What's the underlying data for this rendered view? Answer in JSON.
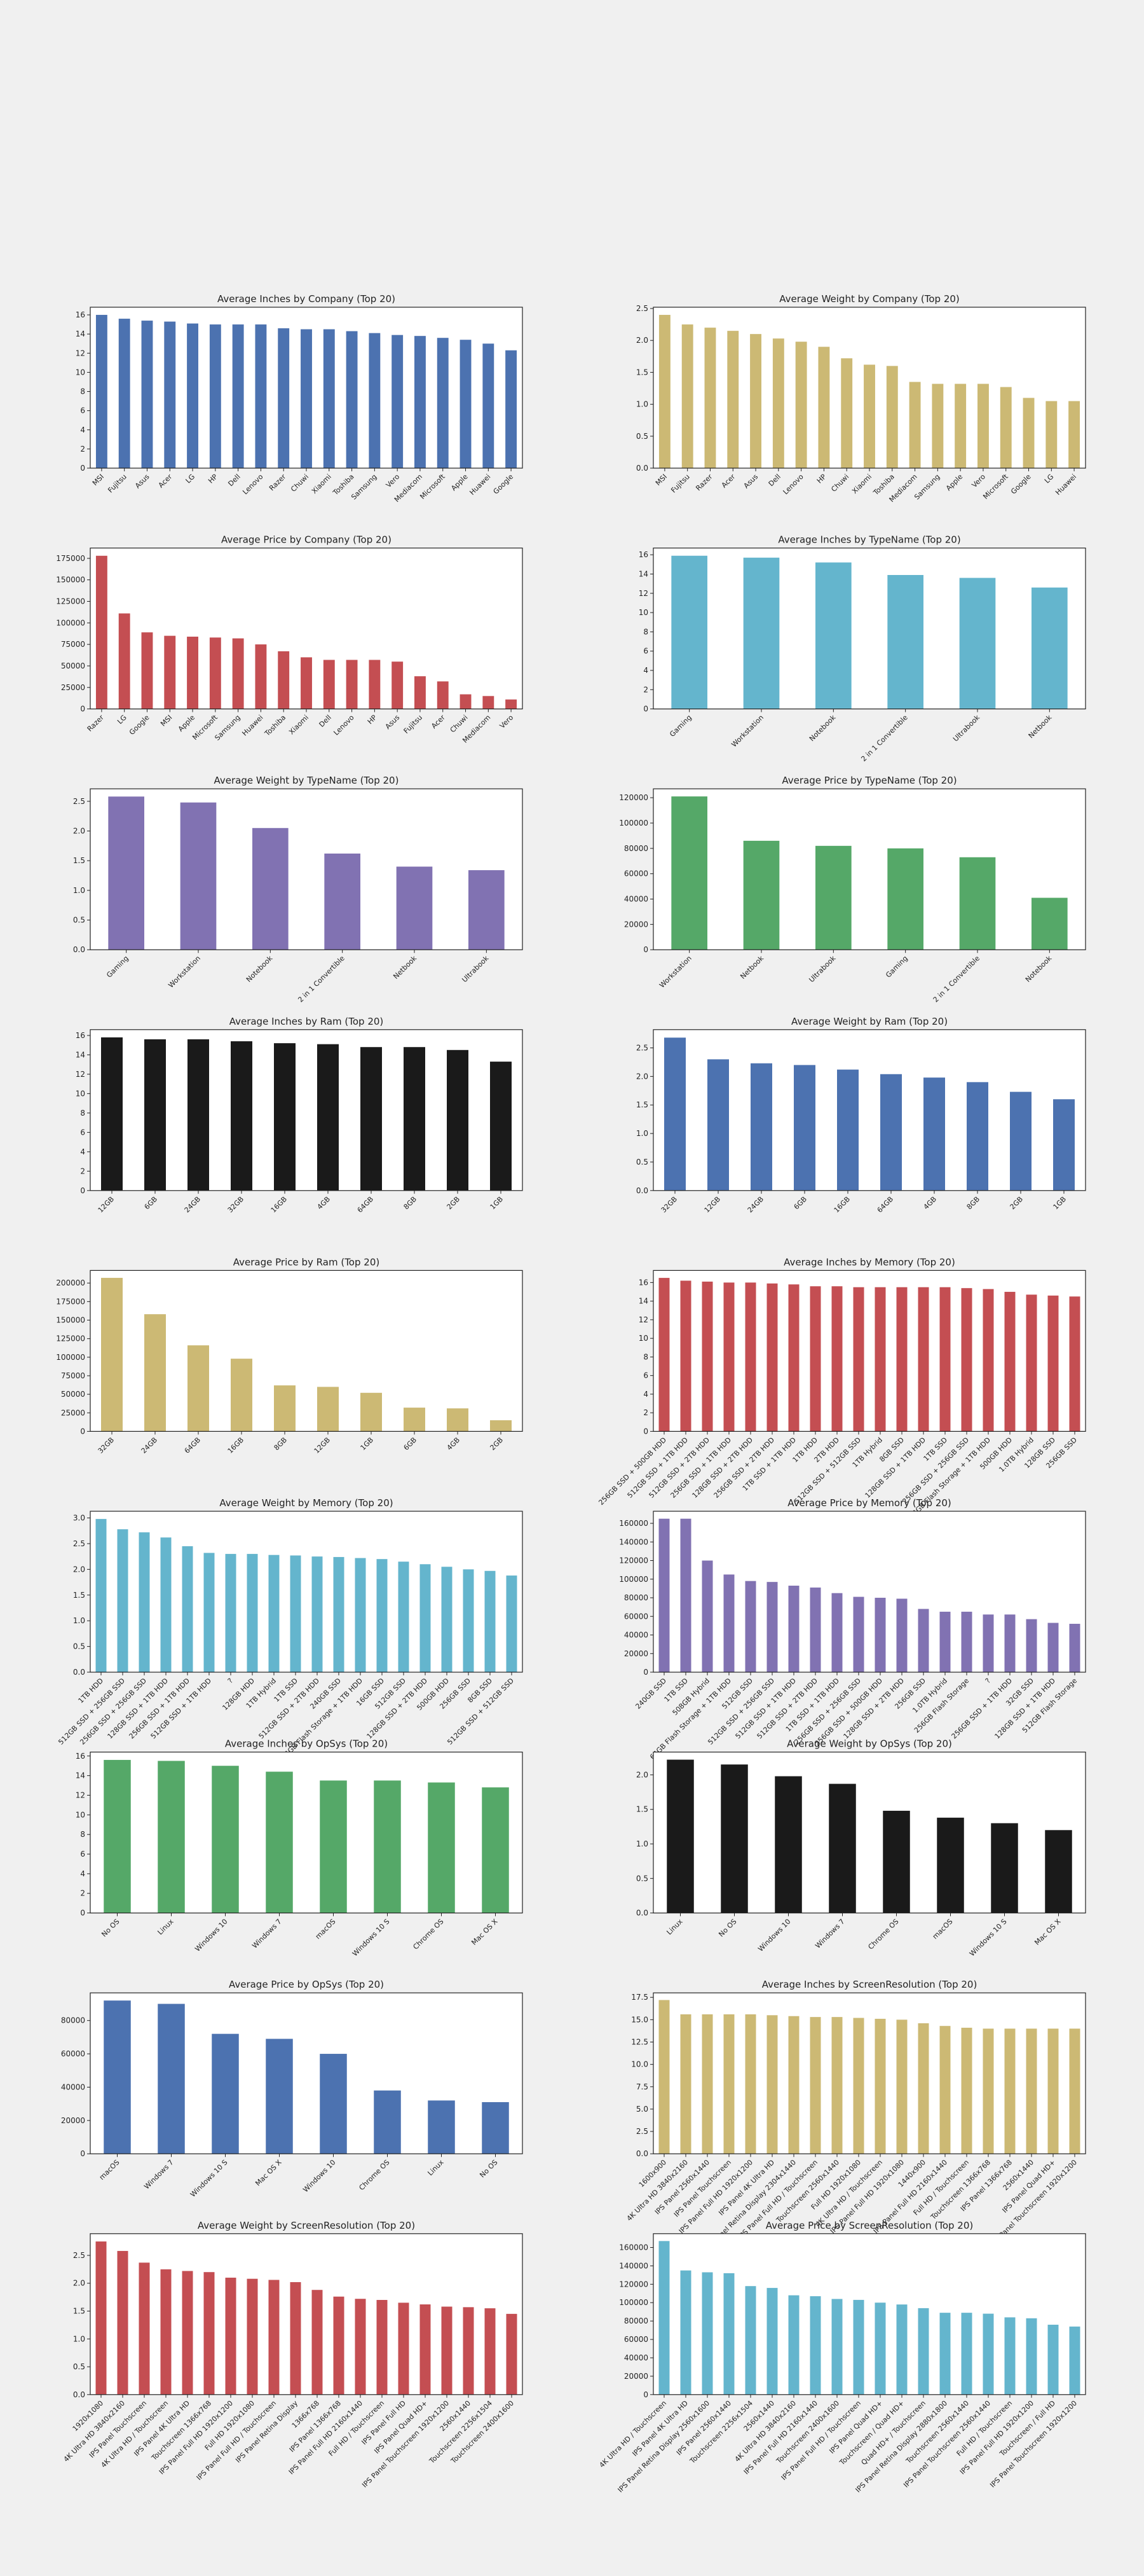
{
  "chart_data": [
    {
      "type": "bar",
      "title": "Average Inches by Company (Top 20)",
      "color": "#4c72b0",
      "categories": [
        "MSI",
        "Fujitsu",
        "Asus",
        "Acer",
        "LG",
        "HP",
        "Dell",
        "Lenovo",
        "Razer",
        "Chuwi",
        "Xiaomi",
        "Toshiba",
        "Samsung",
        "Vero",
        "Mediacom",
        "Microsoft",
        "Apple",
        "Huawei",
        "Google"
      ],
      "values": [
        16.0,
        15.6,
        15.4,
        15.3,
        15.1,
        15.0,
        15.0,
        15.0,
        14.6,
        14.5,
        14.5,
        14.3,
        14.1,
        13.9,
        13.8,
        13.6,
        13.4,
        13.0,
        12.3
      ],
      "ylim": [
        0,
        16.8
      ],
      "yticks": [
        0,
        2,
        4,
        6,
        8,
        10,
        12,
        14,
        16
      ]
    },
    {
      "type": "bar",
      "title": "Average Weight by Company (Top 20)",
      "color": "#ccb974",
      "categories": [
        "MSI",
        "Fujitsu",
        "Razer",
        "Acer",
        "Asus",
        "Dell",
        "Lenovo",
        "HP",
        "Chuwi",
        "Xiaomi",
        "Toshiba",
        "Mediacom",
        "Samsung",
        "Apple",
        "Vero",
        "Microsoft",
        "Google",
        "LG",
        "Huawei"
      ],
      "values": [
        2.4,
        2.25,
        2.2,
        2.15,
        2.1,
        2.03,
        1.98,
        1.9,
        1.72,
        1.62,
        1.6,
        1.35,
        1.32,
        1.32,
        1.32,
        1.27,
        1.1,
        1.05,
        1.05
      ],
      "ylim": [
        0,
        2.52
      ],
      "yticks": [
        {
          "value": 0,
          "label": "0.0"
        },
        0.5,
        {
          "value": 1,
          "label": "1.0"
        },
        1.5,
        {
          "value": 2,
          "label": "2.0"
        },
        2.5
      ]
    },
    {
      "type": "bar",
      "title": "Average Price by Company (Top 20)",
      "color": "#c44e52",
      "categories": [
        "Razer",
        "LG",
        "Google",
        "MSI",
        "Apple",
        "Microsoft",
        "Samsung",
        "Huawei",
        "Toshiba",
        "Xiaomi",
        "Dell",
        "Lenovo",
        "HP",
        "Asus",
        "Fujitsu",
        "Acer",
        "Chuwi",
        "Mediacom",
        "Vero"
      ],
      "values": [
        178000,
        111000,
        89000,
        85000,
        84000,
        83000,
        82000,
        75000,
        67000,
        60000,
        57000,
        57000,
        57000,
        55000,
        38000,
        32000,
        17000,
        15000,
        11000
      ],
      "ylim": [
        0,
        187000
      ],
      "yticks": [
        0,
        25000,
        50000,
        75000,
        100000,
        125000,
        150000,
        175000
      ]
    },
    {
      "type": "bar",
      "title": "Average Inches by TypeName (Top 20)",
      "color": "#64b5cd",
      "categories": [
        "Gaming",
        "Workstation",
        "Notebook",
        "2 in 1 Convertible",
        "Ultrabook",
        "Netbook"
      ],
      "values": [
        15.9,
        15.7,
        15.2,
        13.9,
        13.6,
        12.6
      ],
      "ylim": [
        0,
        16.7
      ],
      "yticks": [
        0,
        2,
        4,
        6,
        8,
        10,
        12,
        14,
        16
      ]
    },
    {
      "type": "bar",
      "title": "Average Weight by TypeName (Top 20)",
      "color": "#8172b2",
      "categories": [
        "Gaming",
        "Workstation",
        "Notebook",
        "2 in 1 Convertible",
        "Netbook",
        "Ultrabook"
      ],
      "values": [
        2.58,
        2.48,
        2.05,
        1.62,
        1.4,
        1.34
      ],
      "ylim": [
        0,
        2.71
      ],
      "yticks": [
        {
          "value": 0,
          "label": "0.0"
        },
        0.5,
        {
          "value": 1,
          "label": "1.0"
        },
        1.5,
        {
          "value": 2,
          "label": "2.0"
        },
        2.5
      ]
    },
    {
      "type": "bar",
      "title": "Average Price by TypeName (Top 20)",
      "color": "#55a868",
      "categories": [
        "Workstation",
        "Netbook",
        "Ultrabook",
        "Gaming",
        "2 in 1 Convertible",
        "Notebook"
      ],
      "values": [
        121000,
        86000,
        82000,
        80000,
        73000,
        41000
      ],
      "ylim": [
        0,
        127000
      ],
      "yticks": [
        0,
        20000,
        40000,
        60000,
        80000,
        100000,
        120000
      ]
    },
    {
      "type": "bar",
      "title": "Average Inches by Ram (Top 20)",
      "color": "#1a1a1a",
      "categories": [
        "12GB",
        "6GB",
        "24GB",
        "32GB",
        "16GB",
        "4GB",
        "64GB",
        "8GB",
        "2GB",
        "1GB"
      ],
      "values": [
        15.8,
        15.6,
        15.6,
        15.4,
        15.2,
        15.1,
        14.8,
        14.8,
        14.5,
        13.3
      ],
      "ylim": [
        0,
        16.6
      ],
      "yticks": [
        0,
        2,
        4,
        6,
        8,
        10,
        12,
        14,
        16
      ]
    },
    {
      "type": "bar",
      "title": "Average Weight by Ram (Top 20)",
      "color": "#4c72b0",
      "categories": [
        "32GB",
        "12GB",
        "24GB",
        "6GB",
        "16GB",
        "64GB",
        "4GB",
        "8GB",
        "2GB",
        "1GB"
      ],
      "values": [
        2.68,
        2.3,
        2.23,
        2.2,
        2.12,
        2.04,
        1.98,
        1.9,
        1.73,
        1.6
      ],
      "ylim": [
        0,
        2.82
      ],
      "yticks": [
        {
          "value": 0,
          "label": "0.0"
        },
        0.5,
        {
          "value": 1,
          "label": "1.0"
        },
        1.5,
        {
          "value": 2,
          "label": "2.0"
        },
        2.5
      ]
    },
    {
      "type": "bar",
      "title": "Average Price by Ram (Top 20)",
      "color": "#ccb974",
      "categories": [
        "32GB",
        "24GB",
        "64GB",
        "16GB",
        "8GB",
        "12GB",
        "1GB",
        "6GB",
        "4GB",
        "2GB"
      ],
      "values": [
        207000,
        158000,
        116000,
        98000,
        62000,
        60000,
        52000,
        32000,
        31000,
        15000
      ],
      "ylim": [
        0,
        217000
      ],
      "yticks": [
        0,
        25000,
        50000,
        75000,
        100000,
        125000,
        150000,
        175000,
        200000
      ]
    },
    {
      "type": "bar",
      "title": "Average Inches by Memory (Top 20)",
      "color": "#c44e52",
      "categories": [
        "256GB SSD + 500GB HDD",
        "512GB SSD + 1TB HDD",
        "512GB SSD + 2TB HDD",
        "256GB SSD + 1TB HDD",
        "128GB SSD + 2TB HDD",
        "256GB SSD + 2TB HDD",
        "1TB SSD + 1TB HDD",
        "1TB HDD",
        "2TB HDD",
        "512GB SSD + 512GB SSD",
        "1TB Hybrid",
        "8GB SSD",
        "128GB SSD + 1TB HDD",
        "1TB SSD",
        "256GB SSD + 256GB SSD",
        "64GB Flash Storage + 1TB HDD",
        "500GB HDD",
        "1.0TB Hybrid",
        "128GB SSD",
        "256GB SSD"
      ],
      "values": [
        16.5,
        16.2,
        16.1,
        16.0,
        16.0,
        15.9,
        15.8,
        15.6,
        15.6,
        15.5,
        15.5,
        15.5,
        15.5,
        15.5,
        15.4,
        15.3,
        15.0,
        14.7,
        14.6,
        14.5
      ],
      "ylim": [
        0,
        17.3
      ],
      "yticks": [
        0,
        2,
        4,
        6,
        8,
        10,
        12,
        14,
        16
      ]
    },
    {
      "type": "bar",
      "title": "Average Weight by Memory (Top 20)",
      "color": "#64b5cd",
      "categories": [
        "1TB HDD",
        "512GB SSD + 256GB SSD",
        "256GB SSD + 256GB SSD",
        "128GB SSD + 1TB HDD",
        "256GB SSD + 1TB HDD",
        "512GB SSD + 1TB HDD",
        "?",
        "128GB HDD",
        "1TB Hybrid",
        "1TB SSD",
        "512GB SSD + 2TB HDD",
        "240GB SSD",
        "64GB Flash Storage + 1TB HDD",
        "16GB SSD",
        "512GB SSD",
        "128GB SSD + 2TB HDD",
        "500GB HDD",
        "256GB SSD",
        "8GB SSD",
        "512GB SSD + 512GB SSD"
      ],
      "values": [
        2.98,
        2.78,
        2.72,
        2.62,
        2.45,
        2.32,
        2.3,
        2.3,
        2.28,
        2.27,
        2.25,
        2.24,
        2.22,
        2.2,
        2.15,
        2.1,
        2.05,
        2.0,
        1.97,
        1.88
      ],
      "ylim": [
        0,
        3.13
      ],
      "yticks": [
        {
          "value": 0,
          "label": "0.0"
        },
        0.5,
        {
          "value": 1,
          "label": "1.0"
        },
        1.5,
        {
          "value": 2,
          "label": "2.0"
        },
        2.5,
        {
          "value": 3,
          "label": "3.0"
        }
      ]
    },
    {
      "type": "bar",
      "title": "Average Price by Memory (Top 20)",
      "color": "#8172b2",
      "categories": [
        "240GB SSD",
        "1TB SSD",
        "508GB Hybrid",
        "64GB Flash Storage + 1TB HDD",
        "512GB SSD",
        "512GB SSD + 256GB SSD",
        "512GB SSD + 1TB HDD",
        "512GB SSD + 2TB HDD",
        "1TB SSD + 1TB HDD",
        "256GB SSD + 256GB SSD",
        "256GB SSD + 500GB HDD",
        "128GB SSD + 2TB HDD",
        "256GB SSD",
        "1.0TB Hybrid",
        "256GB Flash Storage",
        "?",
        "256GB SSD + 1TB HDD",
        "32GB SSD",
        "128GB SSD + 1TB HDD",
        "512GB Flash Storage"
      ],
      "values": [
        165000,
        165000,
        120000,
        105000,
        98000,
        97000,
        93000,
        91000,
        85000,
        81000,
        80000,
        79000,
        68000,
        65000,
        65000,
        62000,
        62000,
        57000,
        53000,
        52000
      ],
      "ylim": [
        0,
        173000
      ],
      "yticks": [
        0,
        20000,
        40000,
        60000,
        80000,
        100000,
        120000,
        140000,
        160000
      ]
    },
    {
      "type": "bar",
      "title": "Average Inches by OpSys (Top 20)",
      "color": "#55a868",
      "categories": [
        "No OS",
        "Linux",
        "Windows 10",
        "Windows 7",
        "macOS",
        "Windows 10 S",
        "Chrome OS",
        "Mac OS X"
      ],
      "values": [
        15.6,
        15.5,
        15.0,
        14.4,
        13.5,
        13.5,
        13.3,
        12.8
      ],
      "ylim": [
        0,
        16.4
      ],
      "yticks": [
        0,
        2,
        4,
        6,
        8,
        10,
        12,
        14,
        16
      ]
    },
    {
      "type": "bar",
      "title": "Average Weight by OpSys (Top 20)",
      "color": "#1a1a1a",
      "categories": [
        "Linux",
        "No OS",
        "Windows 10",
        "Windows 7",
        "Chrome OS",
        "macOS",
        "Windows 10 S",
        "Mac OS X"
      ],
      "values": [
        2.22,
        2.15,
        1.98,
        1.87,
        1.48,
        1.38,
        1.3,
        1.2
      ],
      "ylim": [
        0,
        2.33
      ],
      "yticks": [
        {
          "value": 0,
          "label": "0.0"
        },
        0.5,
        {
          "value": 1,
          "label": "1.0"
        },
        1.5,
        {
          "value": 2,
          "label": "2.0"
        }
      ]
    },
    {
      "type": "bar",
      "title": "Average Price by OpSys (Top 20)",
      "color": "#4c72b0",
      "categories": [
        "macOS",
        "Windows 7",
        "Windows 10 S",
        "Mac OS X",
        "Windows 10",
        "Chrome OS",
        "Linux",
        "No OS"
      ],
      "values": [
        92000,
        90000,
        72000,
        69000,
        60000,
        38000,
        32000,
        31000
      ],
      "ylim": [
        0,
        96600
      ],
      "yticks": [
        0,
        20000,
        40000,
        60000,
        80000
      ]
    },
    {
      "type": "bar",
      "title": "Average Inches by ScreenResolution (Top 20)",
      "color": "#ccb974",
      "categories": [
        "1600x900",
        "4K Ultra HD 3840x2160",
        "IPS Panel 2560x1440",
        "IPS Panel Touchscreen",
        "IPS Panel Full HD 1920x1200",
        "IPS Panel 4K Ultra HD",
        "IPS Panel Retina Display 2304x1440",
        "IPS Panel Full HD / Touchscreen",
        "Touchscreen 2560x1440",
        "Full HD 1920x1080",
        "4K Ultra HD / Touchscreen",
        "IPS Panel Full HD 1920x1080",
        "1440x900",
        "IPS Panel Full HD 2160x1440",
        "Full HD / Touchscreen",
        "Touchscreen 1366x768",
        "IPS Panel 1366x768",
        "2560x1440",
        "IPS Panel Quad HD+",
        "IPS Panel Touchscreen 1920x1200"
      ],
      "values": [
        17.2,
        15.6,
        15.6,
        15.6,
        15.6,
        15.5,
        15.4,
        15.3,
        15.3,
        15.2,
        15.1,
        15.0,
        14.6,
        14.3,
        14.1,
        14.0,
        14.0,
        14.0,
        14.0,
        14.0
      ],
      "ylim": [
        0,
        18.0
      ],
      "yticks": [
        {
          "value": 0,
          "label": "0.0"
        },
        2.5,
        {
          "value": 5,
          "label": "5.0"
        },
        7.5,
        {
          "value": 10,
          "label": "10.0"
        },
        12.5,
        {
          "value": 15,
          "label": "15.0"
        },
        17.5
      ]
    },
    {
      "type": "bar",
      "title": "Average Weight by ScreenResolution (Top 20)",
      "color": "#c44e52",
      "categories": [
        "1920x1080",
        "4K Ultra HD 3840x2160",
        "IPS Panel Touchscreen",
        "4K Ultra HD / Touchscreen",
        "IPS Panel 4K Ultra HD",
        "Touchscreen 1366x768",
        "IPS Panel Full HD 1920x1200",
        "Full HD 1920x1080",
        "IPS Panel Full HD / Touchscreen",
        "IPS Panel Retina Display",
        "1366x768",
        "IPS Panel 1366x768",
        "IPS Panel Full HD 2160x1440",
        "Full HD / Touchscreen",
        "IPS Panel Full HD",
        "IPS Panel Quad HD+",
        "IPS Panel Touchscreen 1920x1200",
        "2560x1440",
        "Touchscreen 2256x1504",
        "Touchscreen 2400x1600"
      ],
      "values": [
        2.75,
        2.58,
        2.37,
        2.25,
        2.22,
        2.2,
        2.1,
        2.08,
        2.06,
        2.02,
        1.88,
        1.76,
        1.72,
        1.7,
        1.65,
        1.62,
        1.58,
        1.57,
        1.55,
        1.45
      ],
      "ylim": [
        0,
        2.89
      ],
      "yticks": [
        {
          "value": 0,
          "label": "0.0"
        },
        0.5,
        {
          "value": 1,
          "label": "1.0"
        },
        1.5,
        {
          "value": 2,
          "label": "2.0"
        },
        2.5
      ]
    },
    {
      "type": "bar",
      "title": "Average Price by ScreenResolution (Top 20)",
      "color": "#64b5cd",
      "categories": [
        "4K Ultra HD / Touchscreen",
        "IPS Panel 4K Ultra HD",
        "IPS Panel Retina Display 2560x1600",
        "IPS Panel 2560x1440",
        "Touchscreen 2256x1504",
        "2560x1440",
        "4K Ultra HD 3840x2160",
        "IPS Panel Full HD 2160x1440",
        "Touchscreen 2400x1600",
        "IPS Panel Full HD / Touchscreen",
        "IPS Panel Quad HD+",
        "Touchscreen / Quad HD+",
        "Quad HD+ / Touchscreen",
        "IPS Panel Retina Display 2880x1800",
        "Touchscreen 2560x1440",
        "IPS Panel Touchscreen 2560x1440",
        "Full HD / Touchscreen",
        "IPS Panel Full HD 1920x1200",
        "Touchscreen / Full HD",
        "IPS Panel Touchscreen 1920x1200"
      ],
      "values": [
        167000,
        135000,
        133000,
        132000,
        118000,
        116000,
        108000,
        107000,
        104000,
        103000,
        100000,
        98000,
        94000,
        89000,
        89000,
        88000,
        84000,
        83000,
        76000,
        74000
      ],
      "ylim": [
        0,
        175000
      ],
      "yticks": [
        0,
        20000,
        40000,
        60000,
        80000,
        100000,
        120000,
        140000,
        160000
      ]
    }
  ]
}
